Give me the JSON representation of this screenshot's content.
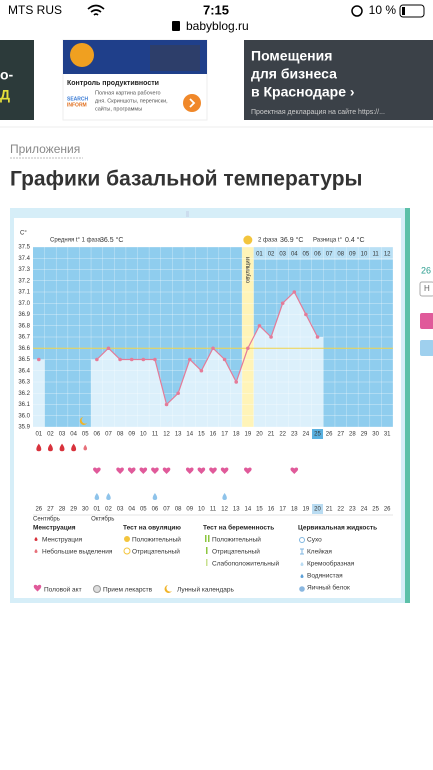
{
  "status_bar": {
    "carrier": "MTS RUS",
    "time": "7:15",
    "battery": "10 %"
  },
  "address_bar": {
    "url": "babyblog.ru"
  },
  "ads": {
    "left_fragment": [
      "о-",
      "Д"
    ],
    "middle": {
      "title": "Контроль продуктивности",
      "brand": [
        "SEARCH",
        "INFORM"
      ],
      "text": [
        "Полная картина рабочего",
        "дня. Скриншоты, переписки,",
        "сайты, программы"
      ]
    },
    "right": {
      "headline": [
        "Помещения",
        "для бизнеса",
        "в Краснодаре ›"
      ],
      "footer": "Проектная декларация на сайте https://..."
    }
  },
  "breadcrumb": "Приложения",
  "page_title": "Графики базальной температуры",
  "side_panel": {
    "items": [
      "26",
      "Н"
    ]
  },
  "chart_data": {
    "type": "line",
    "y_label": "C°",
    "color": "#e57b98",
    "categories": [
      "01",
      "02",
      "03",
      "04",
      "05",
      "06",
      "07",
      "08",
      "09",
      "10",
      "11",
      "12",
      "13",
      "14",
      "15",
      "16",
      "17",
      "18",
      "19",
      "20",
      "21",
      "22",
      "23",
      "24",
      "25",
      "26",
      "27",
      "28",
      "29",
      "30",
      "31"
    ],
    "values": [
      36.5,
      null,
      null,
      null,
      null,
      36.5,
      36.6,
      36.5,
      36.5,
      36.5,
      36.5,
      36.1,
      36.2,
      36.5,
      36.4,
      36.6,
      36.5,
      36.3,
      36.6,
      36.8,
      36.7,
      37.0,
      37.1,
      36.9,
      36.7,
      null,
      null,
      null,
      null,
      null,
      null
    ],
    "ylim": [
      35.9,
      37.5
    ],
    "yticks": [
      35.9,
      {
        "value": 36,
        "label": "36.0"
      },
      36.1,
      36.2,
      36.3,
      36.4,
      36.5,
      36.6,
      36.7,
      36.8,
      36.9,
      {
        "value": 37,
        "label": "37.0"
      },
      37.1,
      37.2,
      37.3,
      37.4,
      37.5
    ],
    "grid": true,
    "coverline": 36.6,
    "ovulation_category": "19",
    "ovulation_label": "овуляция",
    "today_category": "25",
    "luteal_start": "20",
    "luteal_days": [
      "01",
      "02",
      "03",
      "04",
      "05",
      "06",
      "07",
      "08",
      "09",
      "10",
      "11",
      "12"
    ],
    "summary": {
      "phase1_label": "Средняя t° 1 фаза",
      "phase1_value": "36.5 °C",
      "phase2_label": "2 фаза",
      "phase2_value": "36.9 °C",
      "diff_label": "Разница t°",
      "diff_value": "0.4 °C"
    },
    "events": {
      "menstruation": [
        "01",
        "02",
        "03",
        "04"
      ],
      "spotting": [
        "05"
      ],
      "intercourse": [
        "06",
        "08",
        "09",
        "10",
        "11",
        "12",
        "14",
        "15",
        "16",
        "17",
        "19",
        "23"
      ],
      "watery": [
        "06",
        "07",
        "11",
        "17"
      ]
    },
    "dates": [
      "26",
      "27",
      "28",
      "29",
      "30",
      "01",
      "02",
      "03",
      "04",
      "05",
      "06",
      "07",
      "08",
      "09",
      "10",
      "11",
      "12",
      "13",
      "14",
      "15",
      "16",
      "17",
      "18",
      "19",
      "20",
      "21",
      "22",
      "23",
      "24",
      "25",
      "26"
    ],
    "highlighted_date": "20",
    "months": [
      {
        "name": "Сентябрь",
        "from": "01"
      },
      {
        "name": "Октябрь",
        "from": "06"
      }
    ],
    "legend": {
      "groups": [
        {
          "title": "Менструация",
          "items": [
            "Менструация",
            "Небольшие выделения"
          ]
        },
        {
          "title": "Тест на овуляцию",
          "items": [
            "Положительный",
            "Отрицательный"
          ]
        },
        {
          "title": "Тест на беременность",
          "items": [
            "Положительный",
            "Отрицательный",
            "Слабоположительный"
          ]
        },
        {
          "title": "Цервикальная жидкость",
          "items": [
            "Сухо",
            "Клейкая",
            "Кремообразная",
            "Водянистая",
            "Яичный белок"
          ]
        }
      ],
      "bottom": [
        "Половой акт",
        "Прием лекарств",
        "Лунный календарь"
      ]
    }
  }
}
